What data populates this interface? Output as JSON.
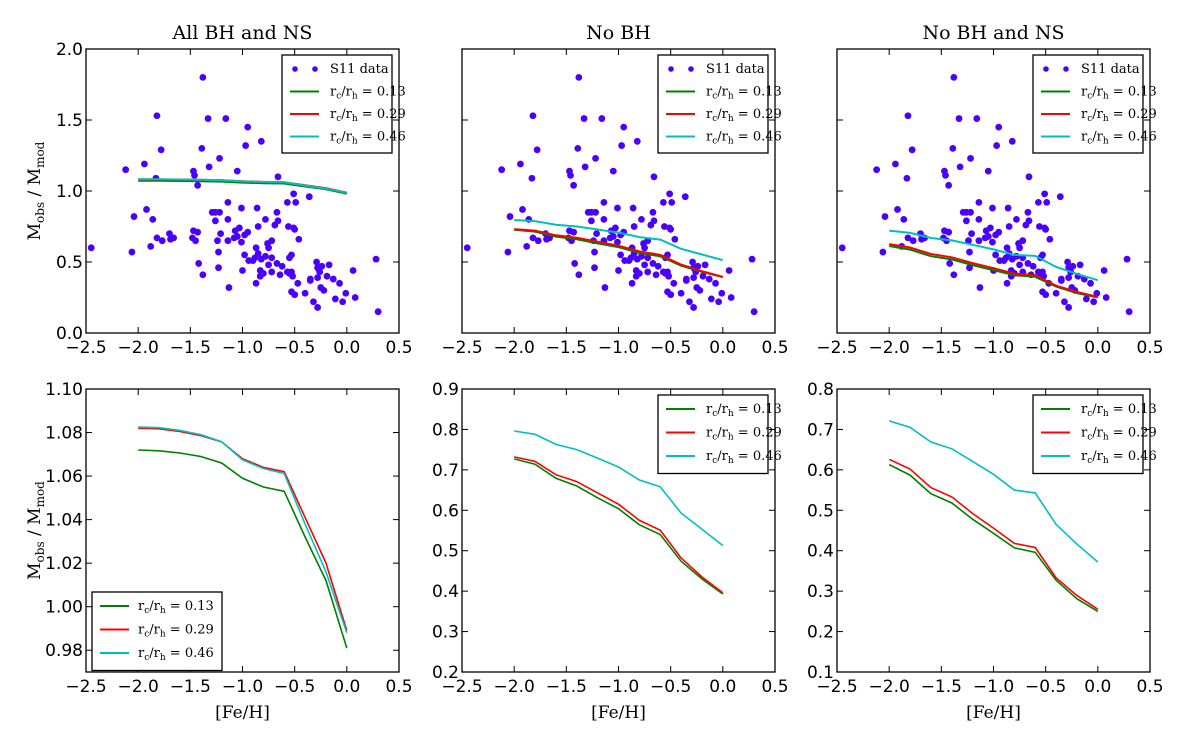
{
  "figure": {
    "description": "Six-panel figure comparing observed-to-model mass ratios against metallicity"
  },
  "chart_data": [
    {
      "id": "top-left",
      "type": "scatter",
      "title": "All BH and NS",
      "xlabel": "",
      "ylabel": "M_obs / M_mod",
      "ylabel_main": "M",
      "ylabel_sub1": "obs",
      "ylabel_mid": " / M",
      "ylabel_sub2": "mod",
      "xlim": [
        -2.5,
        0.5
      ],
      "ylim": [
        0.0,
        2.0
      ],
      "xticks": [
        "−2.5",
        "−2.0",
        "−1.5",
        "−1.0",
        "−0.5",
        "0.0",
        "0.5"
      ],
      "xtick_values": [
        -2.5,
        -2.0,
        -1.5,
        -1.0,
        -0.5,
        0.0,
        0.5
      ],
      "yticks": [
        "0.0",
        "0.5",
        "1.0",
        "1.5",
        "2.0"
      ],
      "ytick_values": [
        0.0,
        0.5,
        1.0,
        1.5,
        2.0
      ],
      "show_ytick_labels": true,
      "legend": "top-right",
      "show_scatter": true,
      "series_ref": "all_bh_ns"
    },
    {
      "id": "top-middle",
      "type": "scatter",
      "title": "No BH",
      "xlabel": "",
      "ylabel": "",
      "xlim": [
        -2.5,
        0.5
      ],
      "ylim": [
        0.0,
        2.0
      ],
      "xticks": [
        "−2.5",
        "−2.0",
        "−1.5",
        "−1.0",
        "−0.5",
        "0.0",
        "0.5"
      ],
      "xtick_values": [
        -2.5,
        -2.0,
        -1.5,
        -1.0,
        -0.5,
        0.0,
        0.5
      ],
      "yticks": [],
      "ytick_values": [
        0.0,
        0.5,
        1.0,
        1.5,
        2.0
      ],
      "show_ytick_labels": false,
      "legend": "top-right",
      "show_scatter": true,
      "series_ref": "no_bh"
    },
    {
      "id": "top-right",
      "type": "scatter",
      "title": "No BH and NS",
      "xlabel": "",
      "ylabel": "",
      "xlim": [
        -2.5,
        0.5
      ],
      "ylim": [
        0.0,
        2.0
      ],
      "xticks": [
        "−2.5",
        "−2.0",
        "−1.5",
        "−1.0",
        "−0.5",
        "0.0",
        "0.5"
      ],
      "xtick_values": [
        -2.5,
        -2.0,
        -1.5,
        -1.0,
        -0.5,
        0.0,
        0.5
      ],
      "yticks": [],
      "ytick_values": [
        0.0,
        0.5,
        1.0,
        1.5,
        2.0
      ],
      "show_ytick_labels": false,
      "legend": "top-right",
      "show_scatter": true,
      "series_ref": "no_bh_ns"
    },
    {
      "id": "bottom-left",
      "type": "line",
      "title": "",
      "xlabel": "[Fe/H]",
      "ylabel": "M_obs / M_mod",
      "ylabel_main": "M",
      "ylabel_sub1": "obs",
      "ylabel_mid": " / M",
      "ylabel_sub2": "mod",
      "xlim": [
        -2.5,
        0.5
      ],
      "ylim": [
        0.97,
        1.1
      ],
      "xticks": [
        "−2.5",
        "−2.0",
        "−1.5",
        "−1.0",
        "−0.5",
        "0.0",
        "0.5"
      ],
      "xtick_values": [
        -2.5,
        -2.0,
        -1.5,
        -1.0,
        -0.5,
        0.0,
        0.5
      ],
      "yticks": [
        "0.98",
        "1.00",
        "1.02",
        "1.04",
        "1.06",
        "1.08",
        "1.10"
      ],
      "ytick_values": [
        0.98,
        1.0,
        1.02,
        1.04,
        1.06,
        1.08,
        1.1
      ],
      "show_ytick_labels": true,
      "legend": "bottom-left",
      "show_scatter": false,
      "series_ref": "all_bh_ns"
    },
    {
      "id": "bottom-middle",
      "type": "line",
      "title": "",
      "xlabel": "[Fe/H]",
      "ylabel": "",
      "xlim": [
        -2.5,
        0.5
      ],
      "ylim": [
        0.2,
        0.9
      ],
      "xticks": [
        "−2.5",
        "−2.0",
        "−1.5",
        "−1.0",
        "−0.5",
        "0.0",
        "0.5"
      ],
      "xtick_values": [
        -2.5,
        -2.0,
        -1.5,
        -1.0,
        -0.5,
        0.0,
        0.5
      ],
      "yticks": [
        "0.2",
        "0.3",
        "0.4",
        "0.5",
        "0.6",
        "0.7",
        "0.8",
        "0.9"
      ],
      "ytick_values": [
        0.2,
        0.3,
        0.4,
        0.5,
        0.6,
        0.7,
        0.8,
        0.9
      ],
      "show_ytick_labels": true,
      "legend": "top-right",
      "show_scatter": false,
      "series_ref": "no_bh"
    },
    {
      "id": "bottom-right",
      "type": "line",
      "title": "",
      "xlabel": "[Fe/H]",
      "ylabel": "",
      "xlim": [
        -2.5,
        0.5
      ],
      "ylim": [
        0.1,
        0.8
      ],
      "xticks": [
        "−2.5",
        "−2.0",
        "−1.5",
        "−1.0",
        "−0.5",
        "0.0",
        "0.5"
      ],
      "xtick_values": [
        -2.5,
        -2.0,
        -1.5,
        -1.0,
        -0.5,
        0.0,
        0.5
      ],
      "yticks": [
        "0.1",
        "0.2",
        "0.3",
        "0.4",
        "0.5",
        "0.6",
        "0.7",
        "0.8"
      ],
      "ytick_values": [
        0.1,
        0.2,
        0.3,
        0.4,
        0.5,
        0.6,
        0.7,
        0.8
      ],
      "show_ytick_labels": true,
      "legend": "top-right",
      "show_scatter": false,
      "series_ref": "no_bh_ns"
    }
  ],
  "model_x": [
    -2.0,
    -1.8,
    -1.6,
    -1.4,
    -1.2,
    -1.0,
    -0.8,
    -0.6,
    -0.4,
    -0.2,
    0.0
  ],
  "model_series": {
    "all_bh_ns": [
      {
        "name": "rc/rh = 0.13",
        "label_ratio": "r",
        "label_value": "0.13",
        "color": "#008000",
        "values": [
          1.072,
          1.0716,
          1.0706,
          1.069,
          1.066,
          1.059,
          1.055,
          1.053,
          1.032,
          1.012,
          0.981
        ]
      },
      {
        "name": "rc/rh = 0.29",
        "label_ratio": "r",
        "label_value": "0.29",
        "color": "#ff0000",
        "values": [
          1.082,
          1.0817,
          1.0805,
          1.0786,
          1.0757,
          1.068,
          1.064,
          1.062,
          1.041,
          1.02,
          0.989
        ]
      },
      {
        "name": "rc/rh = 0.46",
        "label_ratio": "r",
        "label_value": "0.46",
        "color": "#00bfbf",
        "values": [
          1.0825,
          1.0822,
          1.081,
          1.079,
          1.0758,
          1.0675,
          1.0635,
          1.0612,
          1.038,
          1.016,
          0.988
        ]
      }
    ],
    "no_bh": [
      {
        "name": "rc/rh = 0.13",
        "label_value": "0.13",
        "color": "#008000",
        "values": [
          0.727,
          0.714,
          0.679,
          0.66,
          0.631,
          0.604,
          0.564,
          0.54,
          0.474,
          0.43,
          0.393
        ]
      },
      {
        "name": "rc/rh = 0.29",
        "label_value": "0.29",
        "color": "#ff0000",
        "values": [
          0.732,
          0.721,
          0.688,
          0.671,
          0.643,
          0.615,
          0.575,
          0.551,
          0.482,
          0.435,
          0.396
        ]
      },
      {
        "name": "rc/rh = 0.46",
        "label_value": "0.46",
        "color": "#00bfbf",
        "values": [
          0.796,
          0.788,
          0.763,
          0.75,
          0.729,
          0.707,
          0.675,
          0.658,
          0.593,
          0.553,
          0.513
        ]
      }
    ],
    "no_bh_ns": [
      {
        "name": "rc/rh = 0.13",
        "label_value": "0.13",
        "color": "#008000",
        "values": [
          0.613,
          0.587,
          0.541,
          0.518,
          0.478,
          0.443,
          0.407,
          0.396,
          0.327,
          0.281,
          0.25
        ]
      },
      {
        "name": "rc/rh = 0.29",
        "label_value": "0.29",
        "color": "#ff0000",
        "values": [
          0.626,
          0.602,
          0.556,
          0.533,
          0.492,
          0.456,
          0.418,
          0.408,
          0.333,
          0.289,
          0.255
        ]
      },
      {
        "name": "rc/rh = 0.46",
        "label_value": "0.46",
        "color": "#00bfbf",
        "values": [
          0.721,
          0.705,
          0.669,
          0.652,
          0.621,
          0.589,
          0.55,
          0.543,
          0.465,
          0.416,
          0.372
        ]
      }
    ]
  },
  "scatter": {
    "name": "S11 data",
    "color": "#4b00ff",
    "points": [
      [
        -1.38,
        1.8
      ],
      [
        -1.82,
        1.53
      ],
      [
        -1.33,
        1.51
      ],
      [
        -1.16,
        1.51
      ],
      [
        -0.95,
        1.45
      ],
      [
        -1.78,
        1.29
      ],
      [
        -1.39,
        1.3
      ],
      [
        -0.82,
        1.35
      ],
      [
        -0.97,
        1.32
      ],
      [
        -1.22,
        1.23
      ],
      [
        -1.94,
        1.19
      ],
      [
        -1.32,
        1.17
      ],
      [
        -2.12,
        1.15
      ],
      [
        -1.47,
        1.14
      ],
      [
        -1.05,
        1.14
      ],
      [
        -1.46,
        1.11
      ],
      [
        -1.83,
        1.09
      ],
      [
        -0.66,
        1.1
      ],
      [
        -1.43,
        1.04
      ],
      [
        -1.14,
        0.92
      ],
      [
        -1.01,
        0.88
      ],
      [
        -1.92,
        0.87
      ],
      [
        -2.04,
        0.82
      ],
      [
        -1.86,
        0.8
      ],
      [
        -1.29,
        0.85
      ],
      [
        -1.26,
        0.85
      ],
      [
        -1.22,
        0.85
      ],
      [
        -1.26,
        0.79
      ],
      [
        -1.14,
        0.8
      ],
      [
        -1.47,
        0.72
      ],
      [
        -1.43,
        0.71
      ],
      [
        -1.21,
        0.7
      ],
      [
        -1.7,
        0.7
      ],
      [
        -1.07,
        0.72
      ],
      [
        -1.03,
        0.74
      ],
      [
        -1.82,
        0.67
      ],
      [
        -1.69,
        0.66
      ],
      [
        -1.66,
        0.67
      ],
      [
        -1.77,
        0.65
      ],
      [
        -1.48,
        0.67
      ],
      [
        -1.45,
        0.65
      ],
      [
        -1.24,
        0.65
      ],
      [
        -1.14,
        0.65
      ],
      [
        -1.08,
        0.67
      ],
      [
        -1.05,
        0.68
      ],
      [
        -1.01,
        0.64
      ],
      [
        -0.98,
        0.69
      ],
      [
        -1.88,
        0.61
      ],
      [
        -2.45,
        0.6
      ],
      [
        -2.06,
        0.57
      ],
      [
        -1.23,
        0.57
      ],
      [
        -0.98,
        0.55
      ],
      [
        -1.42,
        0.49
      ],
      [
        -1.23,
        0.46
      ],
      [
        -1.0,
        0.44
      ],
      [
        -1.38,
        0.41
      ],
      [
        -1.13,
        0.32
      ],
      [
        -0.51,
        0.98
      ],
      [
        -0.49,
        0.92
      ],
      [
        -0.36,
        0.96
      ],
      [
        -0.57,
        0.92
      ],
      [
        -0.86,
        0.88
      ],
      [
        -0.67,
        0.85
      ],
      [
        -0.78,
        0.8
      ],
      [
        -0.66,
        0.79
      ],
      [
        -0.69,
        0.76
      ],
      [
        -0.85,
        0.75
      ],
      [
        -0.56,
        0.75
      ],
      [
        -0.51,
        0.74
      ],
      [
        -0.5,
        0.73
      ],
      [
        -0.95,
        0.71
      ],
      [
        -0.46,
        0.66
      ],
      [
        -0.72,
        0.65
      ],
      [
        -0.76,
        0.63
      ],
      [
        -0.75,
        0.6
      ],
      [
        -0.87,
        0.6
      ],
      [
        -0.53,
        0.55
      ],
      [
        -0.55,
        0.53
      ],
      [
        -0.85,
        0.56
      ],
      [
        -0.78,
        0.54
      ],
      [
        -0.72,
        0.53
      ],
      [
        -0.88,
        0.53
      ],
      [
        -0.94,
        0.51
      ],
      [
        -0.9,
        0.51
      ],
      [
        -0.82,
        0.52
      ],
      [
        -0.75,
        0.48
      ],
      [
        -0.67,
        0.49
      ],
      [
        -0.62,
        0.47
      ],
      [
        -0.29,
        0.5
      ],
      [
        -0.28,
        0.46
      ],
      [
        -0.83,
        0.44
      ],
      [
        -0.72,
        0.43
      ],
      [
        -0.57,
        0.43
      ],
      [
        -0.53,
        0.43
      ],
      [
        -0.8,
        0.42
      ],
      [
        -0.83,
        0.4
      ],
      [
        -0.64,
        0.41
      ],
      [
        -0.55,
        0.42
      ],
      [
        -0.52,
        0.4
      ],
      [
        -0.28,
        0.39
      ],
      [
        -0.35,
        0.37
      ],
      [
        -0.87,
        0.35
      ],
      [
        -0.47,
        0.35
      ],
      [
        -0.53,
        0.29
      ],
      [
        -0.5,
        0.27
      ],
      [
        -0.4,
        0.28
      ],
      [
        -0.32,
        0.22
      ],
      [
        -0.28,
        0.18
      ],
      [
        0.28,
        0.52
      ],
      [
        -0.24,
        0.47
      ],
      [
        -0.17,
        0.48
      ],
      [
        -0.27,
        0.45
      ],
      [
        -0.26,
        0.43
      ],
      [
        0.06,
        0.44
      ],
      [
        -0.35,
        0.38
      ],
      [
        -0.19,
        0.4
      ],
      [
        -0.13,
        0.38
      ],
      [
        -0.07,
        0.35
      ],
      [
        -0.25,
        0.32
      ],
      [
        -0.22,
        0.3
      ],
      [
        -0.01,
        0.28
      ],
      [
        0.08,
        0.25
      ],
      [
        -0.11,
        0.24
      ],
      [
        -0.04,
        0.22
      ],
      [
        0.3,
        0.15
      ]
    ]
  },
  "legend_text": {
    "scatter_label": "S11 data",
    "ratio_r": "r",
    "ratio_c": "c",
    "ratio_slash": "/r",
    "ratio_h": "h",
    "equals": " = "
  }
}
